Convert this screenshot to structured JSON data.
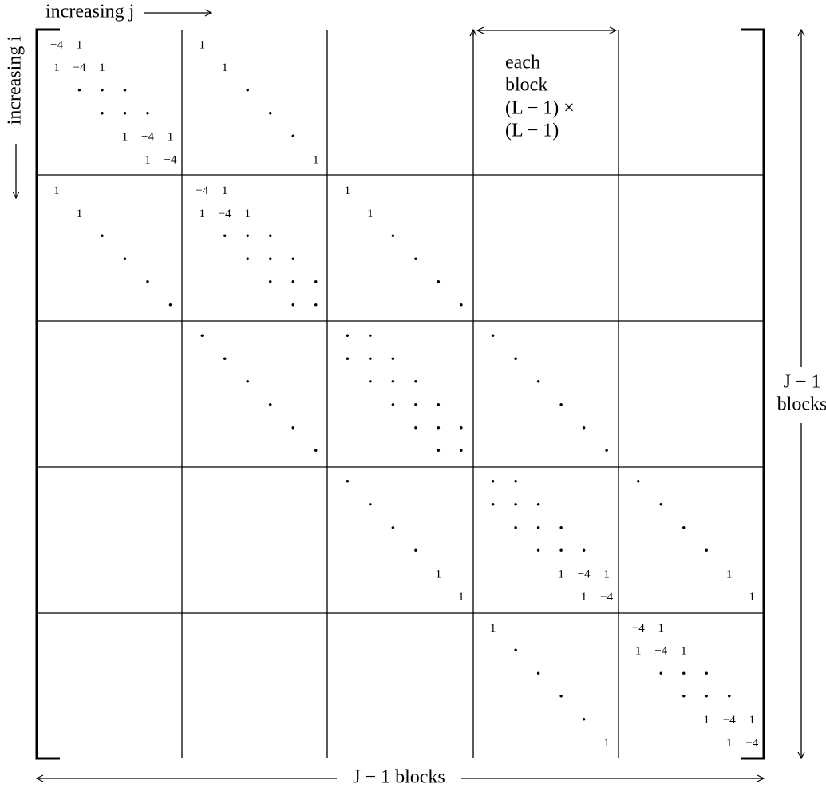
{
  "labels": {
    "top": "increasing j",
    "left": "increasing i",
    "note": [
      "each",
      "block",
      "(L − 1) ×",
      "(L − 1)"
    ],
    "right": [
      "J − 1",
      "blocks"
    ],
    "bottom": "J − 1 blocks"
  },
  "matrix": [
    [
      [
        [
          "−4",
          "1",
          null,
          null,
          null,
          null
        ],
        [
          "1",
          "−4",
          "1",
          null,
          null,
          null
        ],
        [
          null,
          "•",
          "•",
          "•",
          null,
          null
        ],
        [
          null,
          null,
          "•",
          "•",
          "•",
          null
        ],
        [
          null,
          null,
          null,
          "1",
          "−4",
          "1"
        ],
        [
          null,
          null,
          null,
          null,
          "1",
          "−4"
        ]
      ],
      [
        [
          "1",
          null,
          null,
          null,
          null,
          null
        ],
        [
          null,
          "1",
          null,
          null,
          null,
          null
        ],
        [
          null,
          null,
          "•",
          null,
          null,
          null
        ],
        [
          null,
          null,
          null,
          "•",
          null,
          null
        ],
        [
          null,
          null,
          null,
          null,
          "•",
          null
        ],
        [
          null,
          null,
          null,
          null,
          null,
          "1"
        ]
      ],
      null,
      null,
      null
    ],
    [
      [
        [
          "1",
          null,
          null,
          null,
          null,
          null
        ],
        [
          null,
          "1",
          null,
          null,
          null,
          null
        ],
        [
          null,
          null,
          "•",
          null,
          null,
          null
        ],
        [
          null,
          null,
          null,
          "•",
          null,
          null
        ],
        [
          null,
          null,
          null,
          null,
          "•",
          null
        ],
        [
          null,
          null,
          null,
          null,
          null,
          "•"
        ]
      ],
      [
        [
          "−4",
          "1",
          null,
          null,
          null,
          null
        ],
        [
          "1",
          "−4",
          "1",
          null,
          null,
          null
        ],
        [
          null,
          "•",
          "•",
          "•",
          null,
          null
        ],
        [
          null,
          null,
          "•",
          "•",
          "•",
          null
        ],
        [
          null,
          null,
          null,
          "•",
          "•",
          "•"
        ],
        [
          null,
          null,
          null,
          null,
          "•",
          "•"
        ]
      ],
      [
        [
          "1",
          null,
          null,
          null,
          null,
          null
        ],
        [
          null,
          "1",
          null,
          null,
          null,
          null
        ],
        [
          null,
          null,
          "•",
          null,
          null,
          null
        ],
        [
          null,
          null,
          null,
          "•",
          null,
          null
        ],
        [
          null,
          null,
          null,
          null,
          "•",
          null
        ],
        [
          null,
          null,
          null,
          null,
          null,
          "•"
        ]
      ],
      null,
      null
    ],
    [
      null,
      [
        [
          "•",
          null,
          null,
          null,
          null,
          null
        ],
        [
          null,
          "•",
          null,
          null,
          null,
          null
        ],
        [
          null,
          null,
          "•",
          null,
          null,
          null
        ],
        [
          null,
          null,
          null,
          "•",
          null,
          null
        ],
        [
          null,
          null,
          null,
          null,
          "•",
          null
        ],
        [
          null,
          null,
          null,
          null,
          null,
          "•"
        ]
      ],
      [
        [
          "•",
          "•",
          null,
          null,
          null,
          null
        ],
        [
          "•",
          "•",
          "•",
          null,
          null,
          null
        ],
        [
          null,
          "•",
          "•",
          "•",
          null,
          null
        ],
        [
          null,
          null,
          "•",
          "•",
          "•",
          null
        ],
        [
          null,
          null,
          null,
          "•",
          "•",
          "•"
        ],
        [
          null,
          null,
          null,
          null,
          "•",
          "•"
        ]
      ],
      [
        [
          "•",
          null,
          null,
          null,
          null,
          null
        ],
        [
          null,
          "•",
          null,
          null,
          null,
          null
        ],
        [
          null,
          null,
          "•",
          null,
          null,
          null
        ],
        [
          null,
          null,
          null,
          "•",
          null,
          null
        ],
        [
          null,
          null,
          null,
          null,
          "•",
          null
        ],
        [
          null,
          null,
          null,
          null,
          null,
          "•"
        ]
      ],
      null
    ],
    [
      null,
      null,
      [
        [
          "•",
          null,
          null,
          null,
          null,
          null
        ],
        [
          null,
          "•",
          null,
          null,
          null,
          null
        ],
        [
          null,
          null,
          "•",
          null,
          null,
          null
        ],
        [
          null,
          null,
          null,
          "•",
          null,
          null
        ],
        [
          null,
          null,
          null,
          null,
          "1",
          null
        ],
        [
          null,
          null,
          null,
          null,
          null,
          "1"
        ]
      ],
      [
        [
          "•",
          "•",
          null,
          null,
          null,
          null
        ],
        [
          "•",
          "•",
          "•",
          null,
          null,
          null
        ],
        [
          null,
          "•",
          "•",
          "•",
          null,
          null
        ],
        [
          null,
          null,
          "•",
          "•",
          "•",
          null
        ],
        [
          null,
          null,
          null,
          "1",
          "−4",
          "1"
        ],
        [
          null,
          null,
          null,
          null,
          "1",
          "−4"
        ]
      ],
      [
        [
          "•",
          null,
          null,
          null,
          null,
          null
        ],
        [
          null,
          "•",
          null,
          null,
          null,
          null
        ],
        [
          null,
          null,
          "•",
          null,
          null,
          null
        ],
        [
          null,
          null,
          null,
          "•",
          null,
          null
        ],
        [
          null,
          null,
          null,
          null,
          "1",
          null
        ],
        [
          null,
          null,
          null,
          null,
          null,
          "1"
        ]
      ]
    ],
    [
      null,
      null,
      null,
      [
        [
          "1",
          null,
          null,
          null,
          null,
          null
        ],
        [
          null,
          "•",
          null,
          null,
          null,
          null
        ],
        [
          null,
          null,
          "•",
          null,
          null,
          null
        ],
        [
          null,
          null,
          null,
          "•",
          null,
          null
        ],
        [
          null,
          null,
          null,
          null,
          "•",
          null
        ],
        [
          null,
          null,
          null,
          null,
          null,
          "1"
        ]
      ],
      [
        [
          "−4",
          "1",
          null,
          null,
          null,
          null
        ],
        [
          "1",
          "−4",
          "1",
          null,
          null,
          null
        ],
        [
          null,
          "•",
          "•",
          "•",
          null,
          null
        ],
        [
          null,
          null,
          "•",
          "•",
          "•",
          null
        ],
        [
          null,
          null,
          null,
          "1",
          "−4",
          "1"
        ],
        [
          null,
          null,
          null,
          null,
          "1",
          "−4"
        ]
      ]
    ]
  ]
}
